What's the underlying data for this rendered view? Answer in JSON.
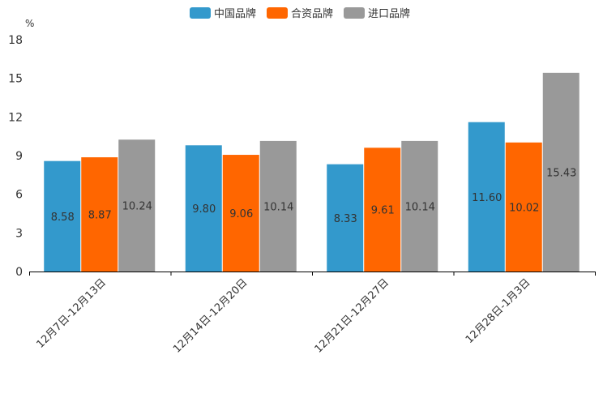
{
  "chart_data": {
    "type": "bar",
    "title": "",
    "xlabel": "",
    "ylabel": "%",
    "ylim": [
      0,
      18
    ],
    "yticks": [
      "0",
      "3",
      "6",
      "9",
      "12",
      "15",
      "18"
    ],
    "grid": false,
    "legend_position": "top-center",
    "categories": [
      "12月7日-12月13日",
      "12月14日-12月20日",
      "12月21日-12月27日",
      "12月28日-1月3日"
    ],
    "series": [
      {
        "name": "中国品牌",
        "color": "#3399cc",
        "values": [
          8.58,
          9.8,
          8.33,
          11.6
        ],
        "labels": [
          "8.58",
          "9.80",
          "8.33",
          "11.60"
        ]
      },
      {
        "name": "合资品牌",
        "color": "#ff6600",
        "values": [
          8.87,
          9.06,
          9.61,
          10.02
        ],
        "labels": [
          "8.87",
          "9.06",
          "9.61",
          "10.02"
        ]
      },
      {
        "name": "进口品牌",
        "color": "#999999",
        "values": [
          10.24,
          10.14,
          10.14,
          15.43
        ],
        "labels": [
          "10.24",
          "10.14",
          "10.14",
          "15.43"
        ]
      }
    ]
  }
}
